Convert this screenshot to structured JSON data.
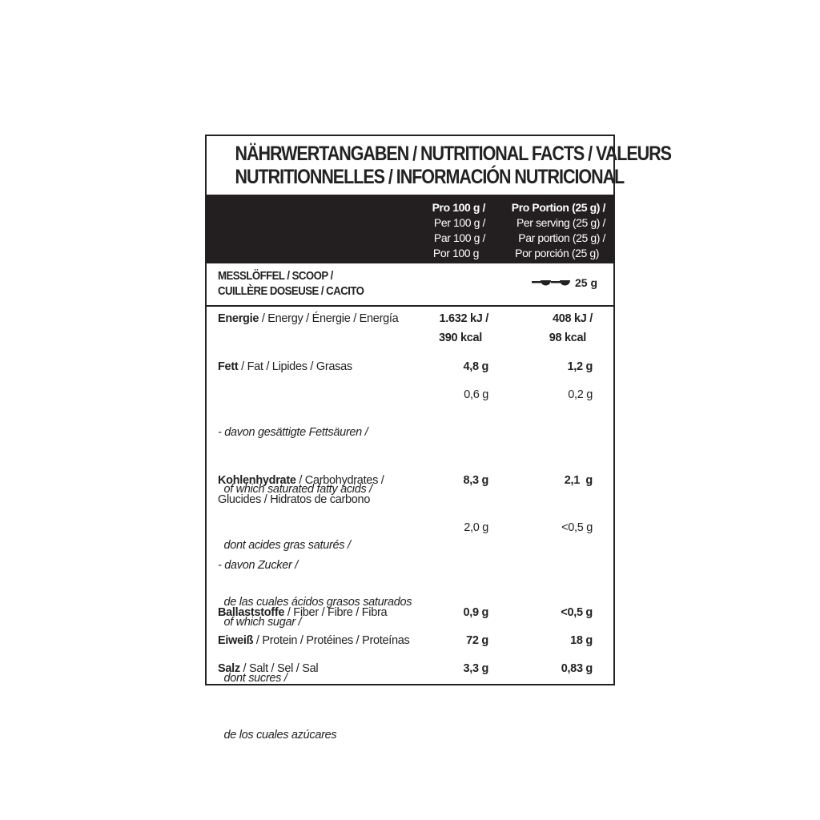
{
  "title": {
    "line1": "NÄHRWERTANGABEN / NUTRITIONAL FACTS / VALEURS",
    "line2": "NUTRITIONNELLES / INFORMACIÓN NUTRICIONAL"
  },
  "header": {
    "per100": [
      "Pro 100 g /",
      "Per 100 g /",
      "Par 100 g /",
      "Por 100 g"
    ],
    "perPortion": [
      "Pro Portion (25 g) /",
      "Per serving  (25 g) /",
      "Par portion (25 g) /",
      "Por porción (25 g)"
    ]
  },
  "scoop": {
    "line1": "MESSLÖFFEL / SCOOP /",
    "line2": "CUILLÈRE DOSEUSE / CACITO",
    "icon": "scoop-icon",
    "value": "25 g"
  },
  "rows": [
    {
      "bold": "Energie",
      "rest": " / Energy / Énergie / Energía",
      "v1": [
        "1.632 kJ /",
        "390 kcal"
      ],
      "v2": [
        "408 kJ /",
        "98 kcal"
      ]
    },
    {
      "bold": "Fett",
      "rest": " / Fat / Lipides / Grasas",
      "v1": [
        "4,8 g"
      ],
      "v2": [
        "1,2 g"
      ]
    },
    {
      "lines": [
        "- davon gesättigte Fettsäuren /",
        "  of which saturated fatty acids /",
        "  dont acides gras saturés /",
        "  de las cuales ácidos grasos saturados"
      ],
      "v1": [
        "0,6 g"
      ],
      "v2": [
        "0,2 g"
      ]
    },
    {
      "bold": "Kohlenhydrate",
      "rest": " / Carbohydrates /",
      "line2": "Glucides / Hidratos de carbono",
      "v1": [
        "8,3 g"
      ],
      "v2": [
        "2,1  g"
      ]
    },
    {
      "lines": [
        "- davon Zucker /",
        "  of which sugar /",
        "  dont sucres /",
        "  de los cuales azúcares"
      ],
      "v1": [
        "2,0 g"
      ],
      "v2": [
        "<0,5 g"
      ]
    },
    {
      "bold": "Ballaststoffe",
      "rest": " / Fiber / Fibre / Fibra",
      "v1": [
        "0,9 g"
      ],
      "v2": [
        "<0,5 g"
      ]
    },
    {
      "bold": "Eiweiß",
      "rest": " / Protein / Protéines / Proteínas",
      "v1": [
        "72 g"
      ],
      "v2": [
        "18 g"
      ]
    },
    {
      "bold": "Salz",
      "rest": " / Salt / Sel / Sal",
      "v1": [
        "3,3 g"
      ],
      "v2": [
        "0,83 g"
      ]
    }
  ]
}
